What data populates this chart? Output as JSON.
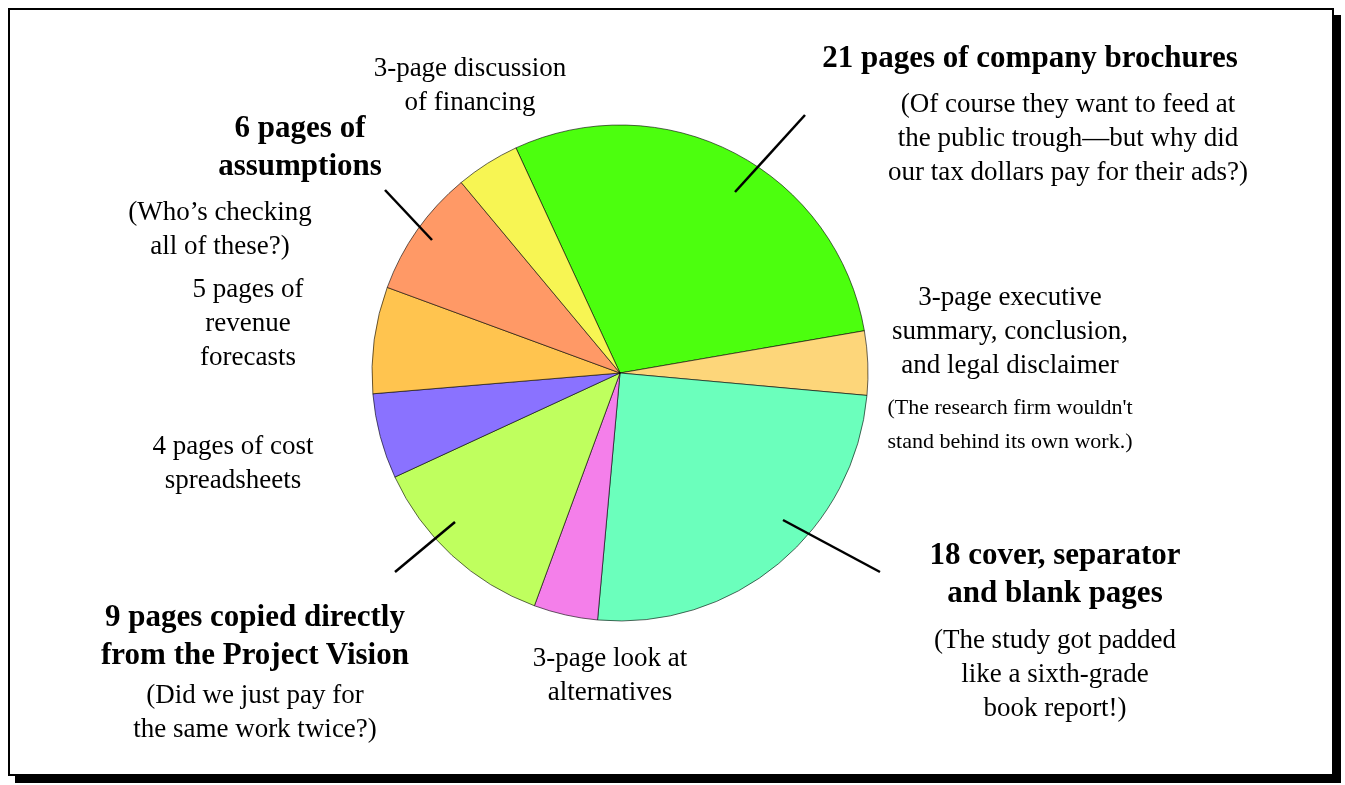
{
  "chart_data": {
    "type": "pie",
    "categories": [
      "21 pages of company brochures",
      "3-page executive summary, conclusion, and legal disclaimer",
      "18 cover, separator and blank pages",
      "3-page look at alternatives",
      "9 pages copied directly from the Project Vision",
      "4 pages of cost spreadsheets",
      "5 pages of revenue forecasts",
      "6 pages of assumptions",
      "3-page discussion of financing"
    ],
    "values": [
      21,
      3,
      18,
      3,
      9,
      4,
      5,
      6,
      3
    ],
    "colors": [
      "#4cff0e",
      "#fdd67a",
      "#6bffbc",
      "#f47fea",
      "#bfff5e",
      "#8a72ff",
      "#ffc44f",
      "#ff9966",
      "#f7f553"
    ],
    "annotations": [
      "(Of course they want to feed at the public trough—but why did our tax dollars pay for their ads?)",
      "(The research firm wouldn't stand behind its own work.)",
      "(The study got padded like a sixth-grade book report!)",
      "(Did we just pay for the same work twice?)",
      "(Who’s checking all of these?)"
    ]
  }
}
